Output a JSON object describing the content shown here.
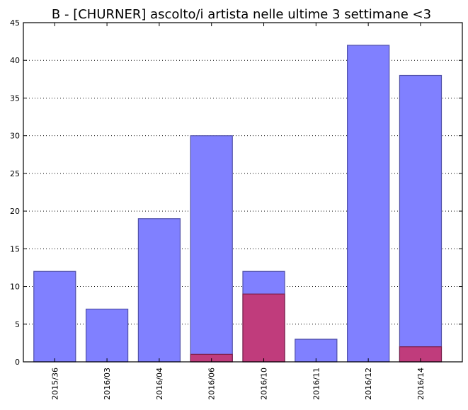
{
  "chart_data": {
    "type": "bar",
    "title": "B - [CHURNER] ascolto/i artista nelle ultime 3 settimane <3",
    "xlabel": "",
    "ylabel": "",
    "categories": [
      "2015/36",
      "2016/03",
      "2016/04",
      "2016/06",
      "2016/10",
      "2016/11",
      "2016/12",
      "2016/14"
    ],
    "ylim": [
      0,
      45
    ],
    "yticks": [
      0,
      5,
      10,
      15,
      20,
      25,
      30,
      35,
      40,
      45
    ],
    "grid": true,
    "series": [
      {
        "values": [
          12,
          7,
          19,
          30,
          12,
          3,
          42,
          38
        ],
        "color": "#8080ff"
      },
      {
        "values": [
          0,
          0,
          0,
          1,
          9,
          0,
          0,
          2
        ],
        "color": "#c03c7c"
      }
    ]
  }
}
